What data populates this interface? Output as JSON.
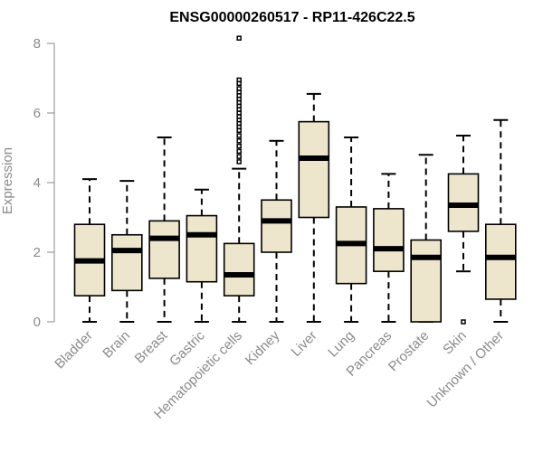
{
  "chart_data": {
    "type": "boxplot",
    "title": "ENSG00000260517 - RP11-426C22.5",
    "xlabel": "",
    "ylabel": "Expression",
    "ylim": [
      0,
      8
    ],
    "yticks": [
      0,
      2,
      4,
      6,
      8
    ],
    "box_color": "#ede6cc",
    "categories": [
      "Bladder",
      "Brain",
      "Breast",
      "Gastric",
      "Hematopoietic cells",
      "Kidney",
      "Liver",
      "Lung",
      "Pancreas",
      "Prostate",
      "Skin",
      "Unknown / Other"
    ],
    "boxes": [
      {
        "min": 0,
        "q1": 0.75,
        "median": 1.75,
        "q3": 2.8,
        "max": 4.1,
        "outliers": []
      },
      {
        "min": 0,
        "q1": 0.9,
        "median": 2.05,
        "q3": 2.5,
        "max": 4.05,
        "outliers": []
      },
      {
        "min": 0,
        "q1": 1.25,
        "median": 2.4,
        "q3": 2.9,
        "max": 5.3,
        "outliers": []
      },
      {
        "min": 0,
        "q1": 1.15,
        "median": 2.5,
        "q3": 3.05,
        "max": 3.8,
        "outliers": []
      },
      {
        "min": 0,
        "q1": 0.75,
        "median": 1.35,
        "q3": 2.25,
        "max": 4.4,
        "outliers": [
          4.6,
          4.75,
          4.9,
          5.05,
          5.2,
          5.35,
          5.5,
          5.6,
          5.7,
          5.8,
          5.9,
          6.0,
          6.1,
          6.2,
          6.3,
          6.4,
          6.5,
          6.6,
          6.7,
          6.85,
          6.95,
          8.15
        ]
      },
      {
        "min": 0,
        "q1": 2.0,
        "median": 2.9,
        "q3": 3.5,
        "max": 5.2,
        "outliers": []
      },
      {
        "min": 0,
        "q1": 3.0,
        "median": 4.7,
        "q3": 5.75,
        "max": 6.55,
        "outliers": []
      },
      {
        "min": 0,
        "q1": 1.1,
        "median": 2.25,
        "q3": 3.3,
        "max": 5.3,
        "outliers": []
      },
      {
        "min": 0,
        "q1": 1.45,
        "median": 2.1,
        "q3": 3.25,
        "max": 4.25,
        "outliers": []
      },
      {
        "min": 0,
        "q1": 0,
        "median": 1.85,
        "q3": 2.35,
        "max": 4.8,
        "outliers": []
      },
      {
        "min": 1.45,
        "q1": 2.6,
        "median": 3.35,
        "q3": 4.25,
        "max": 5.35,
        "outliers": [
          0
        ]
      },
      {
        "min": 0,
        "q1": 0.65,
        "median": 1.85,
        "q3": 2.8,
        "max": 5.8,
        "outliers": []
      }
    ]
  }
}
